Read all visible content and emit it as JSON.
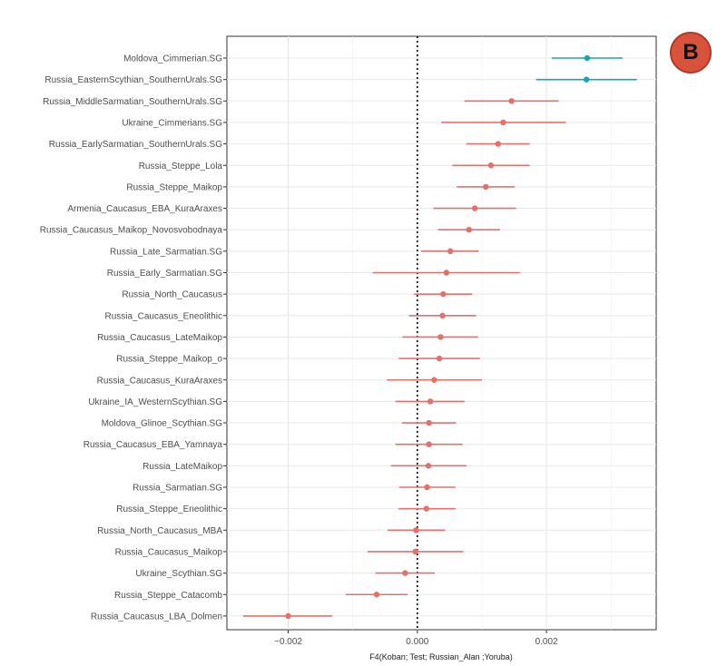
{
  "panel_badge": "B",
  "chart_data": {
    "type": "forest",
    "xlabel": "F4(Koban; Test; Russian_Alan ;Yoruba)",
    "ylabel": "",
    "title": "",
    "xlim": [
      -0.00295,
      0.0037
    ],
    "x_ticks": [
      {
        "value": -0.002,
        "label": "−0.002"
      },
      {
        "value": 0.0,
        "label": "0.000"
      },
      {
        "value": 0.002,
        "label": "0.002"
      }
    ],
    "grid": true,
    "reference_line": 0,
    "colors": {
      "significant": "#1aa5a8",
      "not_significant": "#e5706b"
    },
    "rows": [
      {
        "label": "Moldova_Cimmerian.SG",
        "estimate": 0.00263,
        "lower": 0.00208,
        "upper": 0.00318,
        "significant": true
      },
      {
        "label": "Russia_EasternScythian_SouthernUrals.SG",
        "estimate": 0.00262,
        "lower": 0.00184,
        "upper": 0.0034,
        "significant": true
      },
      {
        "label": "Russia_MiddleSarmatian_SouthernUrals.SG",
        "estimate": 0.00146,
        "lower": 0.00073,
        "upper": 0.00219,
        "significant": false
      },
      {
        "label": "Ukraine_Cimmerians.SG",
        "estimate": 0.00133,
        "lower": 0.00037,
        "upper": 0.0023,
        "significant": false
      },
      {
        "label": "Russia_EarlySarmatian_SouthernUrals.SG",
        "estimate": 0.00125,
        "lower": 0.00076,
        "upper": 0.00174,
        "significant": false
      },
      {
        "label": "Russia_Steppe_Lola",
        "estimate": 0.00114,
        "lower": 0.00054,
        "upper": 0.00174,
        "significant": false
      },
      {
        "label": "Russia_Steppe_Maikop",
        "estimate": 0.00106,
        "lower": 0.00061,
        "upper": 0.00151,
        "significant": false
      },
      {
        "label": "Armenia_Caucasus_EBA_KuraAraxes",
        "estimate": 0.00089,
        "lower": 0.00025,
        "upper": 0.00153,
        "significant": false
      },
      {
        "label": "Russia_Caucasus_Maikop_Novosvobodnaya",
        "estimate": 0.0008,
        "lower": 0.00032,
        "upper": 0.00128,
        "significant": false
      },
      {
        "label": "Russia_Late_Sarmatian.SG",
        "estimate": 0.00051,
        "lower": 6e-05,
        "upper": 0.00095,
        "significant": false
      },
      {
        "label": "Russia_Early_Sarmatian.SG",
        "estimate": 0.00045,
        "lower": -0.00069,
        "upper": 0.00159,
        "significant": false
      },
      {
        "label": "Russia_North_Caucasus",
        "estimate": 0.0004,
        "lower": -5e-05,
        "upper": 0.00085,
        "significant": false
      },
      {
        "label": "Russia_Caucasus_Eneolithic",
        "estimate": 0.00039,
        "lower": -0.00013,
        "upper": 0.00091,
        "significant": false
      },
      {
        "label": "Russia_Caucasus_LateMaikop",
        "estimate": 0.00036,
        "lower": -0.00023,
        "upper": 0.00094,
        "significant": false
      },
      {
        "label": "Russia_Steppe_Maikop_o",
        "estimate": 0.00034,
        "lower": -0.00029,
        "upper": 0.00097,
        "significant": false
      },
      {
        "label": "Russia_Caucasus_KuraAraxes",
        "estimate": 0.00026,
        "lower": -0.00047,
        "upper": 0.001,
        "significant": false
      },
      {
        "label": "Ukraine_IA_WesternScythian.SG",
        "estimate": 0.0002,
        "lower": -0.00034,
        "upper": 0.00073,
        "significant": false
      },
      {
        "label": "Moldova_Glinoe_Scythian.SG",
        "estimate": 0.00018,
        "lower": -0.00024,
        "upper": 0.0006,
        "significant": false
      },
      {
        "label": "Russia_Caucasus_EBA_Yamnaya",
        "estimate": 0.00018,
        "lower": -0.00034,
        "upper": 0.0007,
        "significant": false
      },
      {
        "label": "Russia_LateMaikop",
        "estimate": 0.00017,
        "lower": -0.00041,
        "upper": 0.00076,
        "significant": false
      },
      {
        "label": "Russia_Sarmatian.SG",
        "estimate": 0.00015,
        "lower": -0.00028,
        "upper": 0.00059,
        "significant": false
      },
      {
        "label": "Russia_Steppe_Eneolithic",
        "estimate": 0.00014,
        "lower": -0.00029,
        "upper": 0.00059,
        "significant": false
      },
      {
        "label": "Russia_North_Caucasus_MBA",
        "estimate": -2e-05,
        "lower": -0.00046,
        "upper": 0.00043,
        "significant": false
      },
      {
        "label": "Russia_Caucasus_Maikop",
        "estimate": -3e-05,
        "lower": -0.00077,
        "upper": 0.00071,
        "significant": false
      },
      {
        "label": "Ukraine_Scythian.SG",
        "estimate": -0.00019,
        "lower": -0.00065,
        "upper": 0.00027,
        "significant": false
      },
      {
        "label": "Russia_Steppe_Catacomb",
        "estimate": -0.00063,
        "lower": -0.00111,
        "upper": -0.00015,
        "significant": false
      },
      {
        "label": "Russia_Caucasus_LBA_Dolmen",
        "estimate": -0.002,
        "lower": -0.0027,
        "upper": -0.00132,
        "significant": false
      }
    ]
  }
}
